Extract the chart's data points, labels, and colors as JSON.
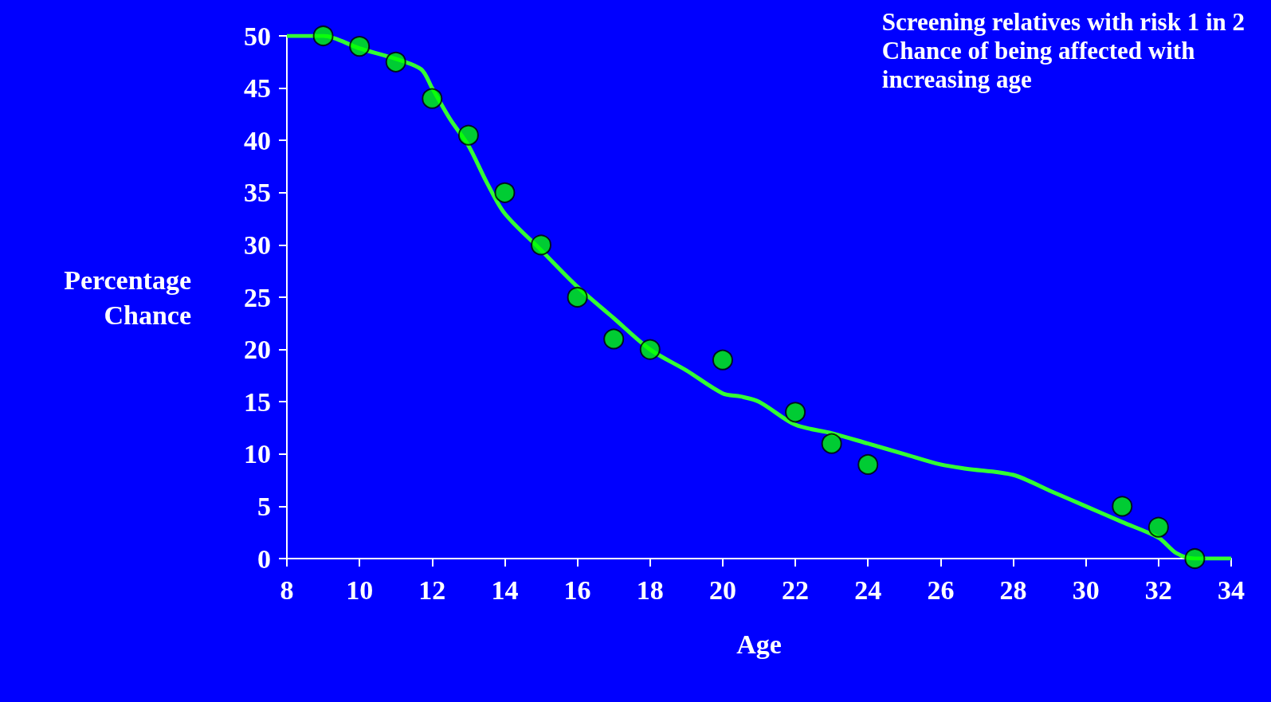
{
  "chart_data": {
    "type": "scatter",
    "title": "Screening relatives with risk 1 in 2\nChance of being affected with\nincreasing age",
    "xlabel": "Age",
    "ylabel": "Percentage\nChance",
    "xlim": [
      8,
      34
    ],
    "xticks": [
      8,
      10,
      12,
      14,
      16,
      18,
      20,
      22,
      24,
      26,
      28,
      30,
      32,
      34
    ],
    "ylim": [
      0,
      50
    ],
    "yticks": [
      0,
      5,
      10,
      15,
      20,
      25,
      30,
      35,
      40,
      45,
      50
    ],
    "grid": false,
    "series": [
      {
        "marker": "circle",
        "color": "#00ff00",
        "x": [
          9,
          10,
          11,
          12,
          13,
          14,
          15,
          16,
          17,
          18,
          20,
          22,
          23,
          24,
          31,
          32,
          33
        ],
        "values": [
          50,
          49,
          47.5,
          44,
          40.5,
          35,
          30,
          25,
          21,
          20,
          19,
          14,
          11,
          9,
          5,
          3,
          0
        ]
      },
      {
        "type": "line",
        "marker": "none",
        "color": "#33ff33",
        "line_style": "solid",
        "x": [
          8,
          9,
          10,
          11,
          11.7,
          12,
          12.5,
          13,
          13.5,
          14,
          15,
          16,
          17,
          18,
          19,
          20,
          20.5,
          21,
          22,
          23,
          24,
          25,
          26,
          26.7,
          28,
          29,
          30,
          31,
          32,
          32.5,
          33,
          34
        ],
        "values": [
          50,
          50,
          48.8,
          47.8,
          46.8,
          45,
          42,
          39.5,
          36,
          33,
          29.5,
          26,
          23,
          20,
          18,
          15.8,
          15.5,
          15,
          12.8,
          12,
          11,
          10,
          9,
          8.6,
          8,
          6.5,
          5,
          3.5,
          2,
          0.5,
          0,
          0
        ]
      }
    ]
  }
}
